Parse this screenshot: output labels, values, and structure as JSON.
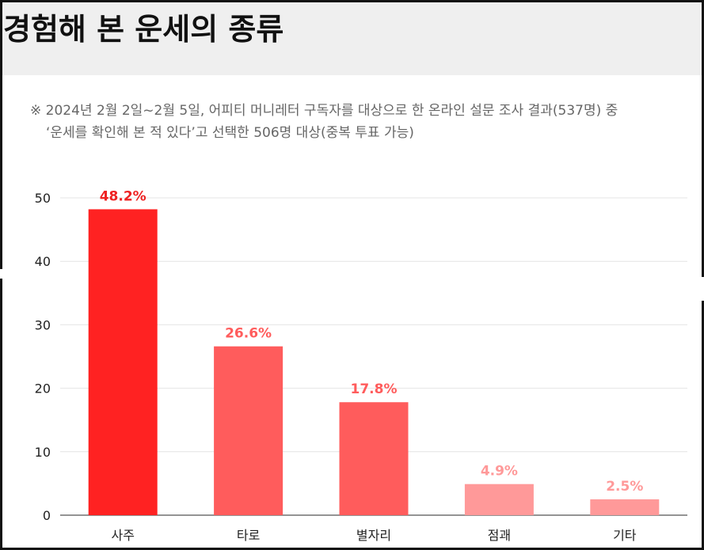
{
  "title": "경험해 본 운세의 종류",
  "note": {
    "line1": "※ 2024년 2월 2일~2월 5일, 어피티 머니레터 구독자를 대상으로 한 온라인 설문 조사 결과(537명) 중",
    "line2": "‘운세를 확인해 본 적 있다’고 선택한 506명 대상(중복 투표 가능)"
  },
  "chart_data": {
    "type": "bar",
    "title": "경험해 본 운세의 종류",
    "xlabel": "",
    "ylabel": "",
    "categories": [
      "사주",
      "타로",
      "별자리",
      "점괘",
      "기타"
    ],
    "values": [
      48.2,
      26.6,
      17.8,
      4.9,
      2.5
    ],
    "value_labels": [
      "48.2%",
      "26.6%",
      "17.8%",
      "4.9%",
      "2.5%"
    ],
    "bar_colors": [
      "#ff2222",
      "#ff5c5c",
      "#ff5c5c",
      "#ff9999",
      "#ff9999"
    ],
    "label_colors": [
      "#ee2222",
      "#ff5c5c",
      "#ff5c5c",
      "#ff9999",
      "#ff9999"
    ],
    "ylim": [
      0,
      50
    ],
    "yticks": [
      0,
      10,
      20,
      30,
      40,
      50
    ],
    "grid": true,
    "legend": "none"
  }
}
